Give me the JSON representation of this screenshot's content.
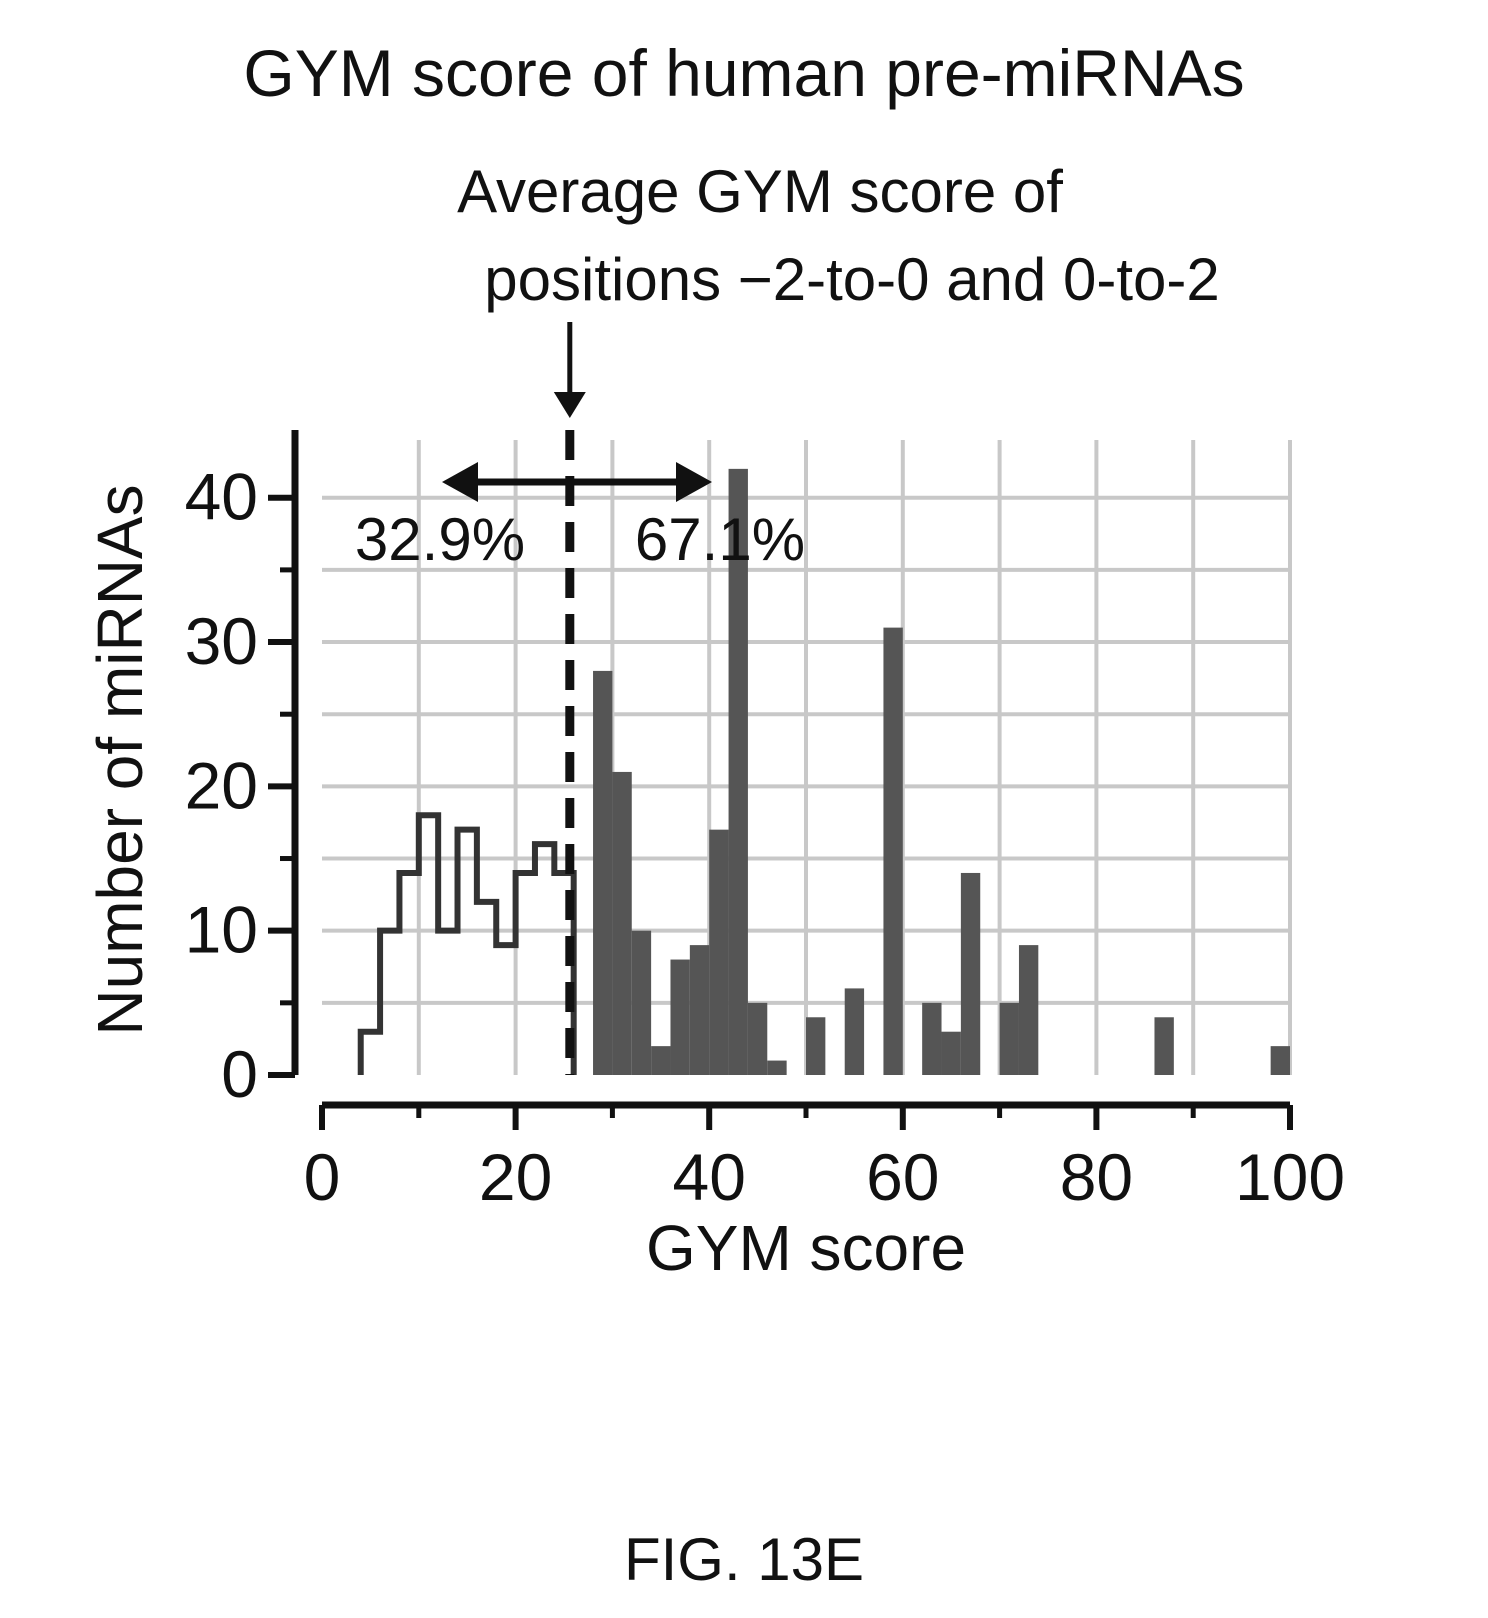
{
  "figure_label": "FIG. 13E",
  "chart_data": {
    "type": "bar",
    "title": "GYM score of human pre-miRNAs",
    "xlabel": "GYM score",
    "ylabel": "Number of miRNAs",
    "xlim": [
      0,
      100
    ],
    "ylim": [
      0,
      44
    ],
    "x_ticks": [
      0,
      20,
      40,
      60,
      80,
      100
    ],
    "y_ticks": [
      0,
      10,
      20,
      30,
      40
    ],
    "grid": true,
    "bin_width": 2,
    "threshold": {
      "x": 25.6,
      "label_lines": [
        "Average GYM score of",
        "positions −2-to-0 and 0-to-2"
      ],
      "left_percent": "32.9%",
      "right_percent": "67.1%"
    },
    "series": [
      {
        "style": "outline",
        "x": [
          4,
          6,
          8,
          10,
          12,
          14,
          16,
          18,
          20,
          22,
          24
        ],
        "values": [
          3,
          10,
          14,
          18,
          10,
          17,
          12,
          9,
          14,
          16,
          14
        ]
      },
      {
        "style": "filled",
        "x": [
          26,
          28,
          30,
          32,
          34,
          36,
          38,
          40,
          42,
          44,
          46,
          48,
          50,
          52,
          54,
          56,
          58,
          60,
          62,
          64,
          66,
          68,
          70,
          72,
          74,
          76,
          78,
          80,
          82,
          84,
          86,
          88,
          90,
          92,
          94,
          96,
          98
        ],
        "values": [
          0,
          28,
          21,
          10,
          2,
          8,
          9,
          17,
          42,
          5,
          1,
          0,
          4,
          0,
          6,
          0,
          31,
          0,
          5,
          3,
          14,
          0,
          5,
          9,
          0,
          0,
          0,
          0,
          0,
          0,
          4,
          0,
          0,
          0,
          0,
          0,
          2
        ]
      }
    ]
  },
  "colors": {
    "bar_fill": "#555555",
    "outline": "#333333",
    "grid": "#c8c8c8",
    "axis": "#111111"
  }
}
